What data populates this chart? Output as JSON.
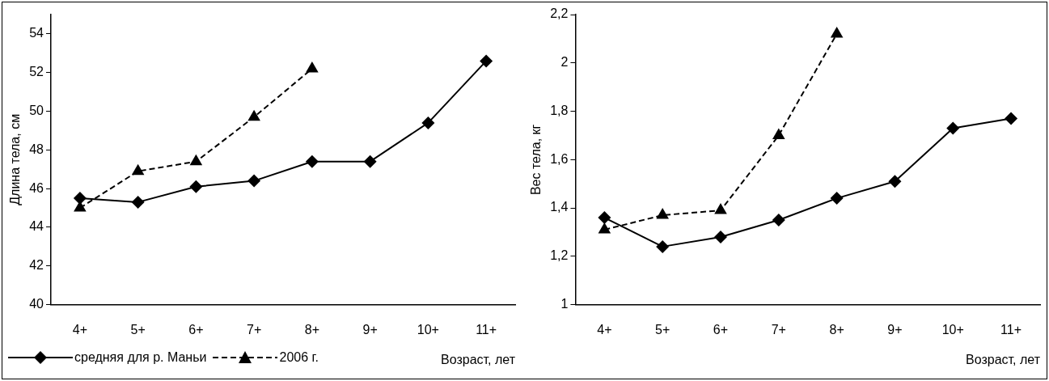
{
  "chart_data": [
    {
      "type": "line",
      "categories": [
        "4+",
        "5+",
        "6+",
        "7+",
        "8+",
        "9+",
        "10+",
        "11+"
      ],
      "xlabel": "Возраст, лет",
      "ylabel": "Длина тела, см",
      "ylim": [
        40,
        55
      ],
      "yticks": [
        40,
        42,
        44,
        46,
        48,
        50,
        52,
        54
      ],
      "grid": false,
      "legend": "bottom left",
      "series": [
        {
          "name": "средняя для р. Маньи",
          "color": "#000000",
          "marker": "diamond",
          "line_style": "solid",
          "values": [
            45.5,
            45.3,
            46.1,
            46.4,
            47.4,
            47.4,
            49.4,
            52.6
          ]
        },
        {
          "name": "2006 г.",
          "color": "#000000",
          "marker": "triangle",
          "line_style": "dashed",
          "values": [
            45.0,
            46.9,
            47.4,
            49.7,
            52.2,
            null,
            null,
            null
          ]
        }
      ]
    },
    {
      "type": "line",
      "categories": [
        "4+",
        "5+",
        "6+",
        "7+",
        "8+",
        "9+",
        "10+",
        "11+"
      ],
      "xlabel": "Возраст, лет",
      "ylabel": "Вес тела, кг",
      "ylim": [
        1,
        2.2
      ],
      "yticks": [
        1,
        {
          "value": 1.2,
          "label": "1,2"
        },
        {
          "value": 1.4,
          "label": "1,4"
        },
        {
          "value": 1.6,
          "label": "1,6"
        },
        {
          "value": 1.8,
          "label": "1,8"
        },
        2,
        {
          "value": 2.2,
          "label": "2,2"
        }
      ],
      "grid": false,
      "legend": false,
      "series": [
        {
          "color": "#000000",
          "marker": "diamond",
          "line_style": "solid",
          "values": [
            1.36,
            1.24,
            1.28,
            1.35,
            1.44,
            1.51,
            1.73,
            1.77
          ]
        },
        {
          "color": "#000000",
          "marker": "triangle",
          "line_style": "dashed",
          "values": [
            1.31,
            1.37,
            1.39,
            1.7,
            2.12,
            null,
            null,
            null
          ]
        }
      ]
    }
  ]
}
